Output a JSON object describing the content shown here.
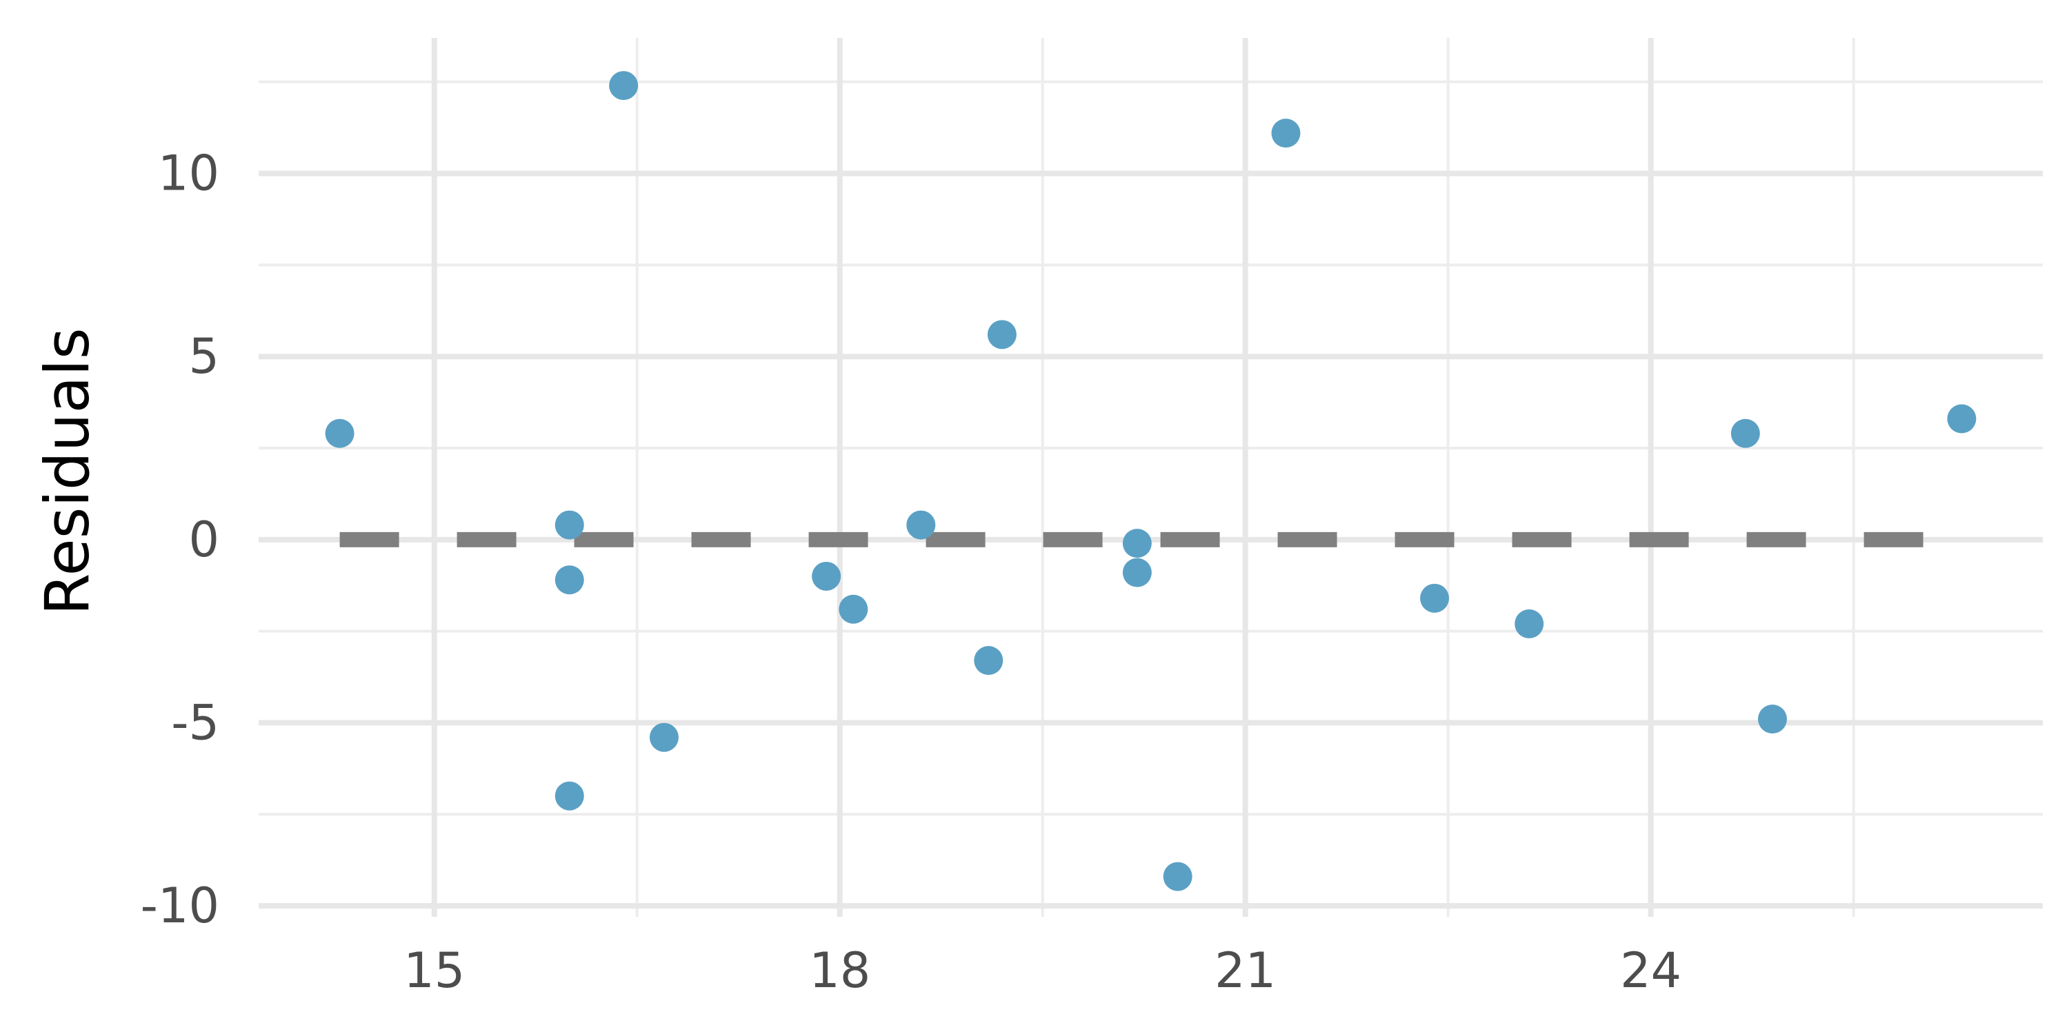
{
  "chart_data": {
    "type": "scatter",
    "title": "",
    "xlabel": "",
    "ylabel": "Residuals",
    "xlim": [
      13.7,
      26.9
    ],
    "ylim": [
      -10.3,
      13.7
    ],
    "x_ticks": [
      15,
      18,
      21,
      24
    ],
    "x_tick_labels": [
      "15",
      "18",
      "21",
      "24"
    ],
    "y_ticks": [
      -10,
      -5,
      0,
      5,
      10
    ],
    "y_tick_labels": [
      "-10",
      "-5",
      "0",
      "5",
      "10"
    ],
    "x_minor_ticks": [
      16.5,
      19.5,
      22.5,
      25.5
    ],
    "y_minor_ticks": [
      -7.5,
      -2.5,
      2.5,
      7.5,
      12.5
    ],
    "grid": true,
    "legend": "none",
    "reference_line": {
      "y": 0,
      "x_start": 14.3,
      "x_end": 26.2,
      "style": "dashed",
      "color": "#808080"
    },
    "point_color": "#5aa0c4",
    "points": [
      {
        "x": 14.3,
        "y": 2.9
      },
      {
        "x": 16.0,
        "y": 0.4
      },
      {
        "x": 16.0,
        "y": -1.1
      },
      {
        "x": 16.0,
        "y": -7.0
      },
      {
        "x": 16.4,
        "y": 12.4
      },
      {
        "x": 16.7,
        "y": -5.4
      },
      {
        "x": 17.9,
        "y": -1.0
      },
      {
        "x": 18.1,
        "y": -1.9
      },
      {
        "x": 18.6,
        "y": 0.4
      },
      {
        "x": 19.1,
        "y": -3.3
      },
      {
        "x": 19.2,
        "y": 5.6
      },
      {
        "x": 20.2,
        "y": -0.1
      },
      {
        "x": 20.2,
        "y": -0.9
      },
      {
        "x": 20.5,
        "y": -9.2
      },
      {
        "x": 21.3,
        "y": 11.1
      },
      {
        "x": 22.4,
        "y": -1.6
      },
      {
        "x": 23.1,
        "y": -2.3
      },
      {
        "x": 24.7,
        "y": 2.9
      },
      {
        "x": 24.9,
        "y": -4.9
      },
      {
        "x": 26.3,
        "y": 3.3
      }
    ]
  }
}
